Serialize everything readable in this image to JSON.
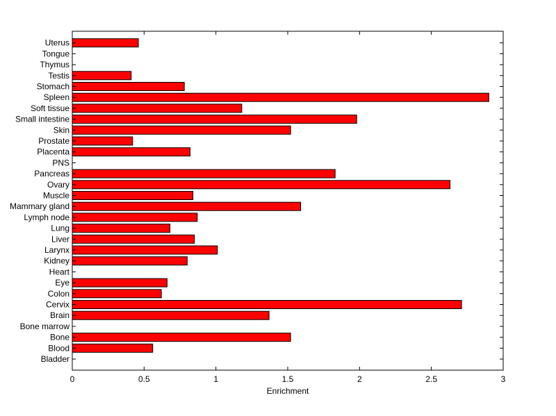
{
  "chart_data": {
    "type": "bar",
    "orientation": "horizontal",
    "categories": [
      "Bladder",
      "Blood",
      "Bone",
      "Bone marrow",
      "Brain",
      "Cervix",
      "Colon",
      "Eye",
      "Heart",
      "Kidney",
      "Larynx",
      "Liver",
      "Lung",
      "Lymph node",
      "Mammary gland",
      "Muscle",
      "Ovary",
      "Pancreas",
      "PNS",
      "Placenta",
      "Prostate",
      "Skin",
      "Small intestine",
      "Soft tissue",
      "Spleen",
      "Stomach",
      "Testis",
      "Thymus",
      "Tongue",
      "Uterus"
    ],
    "values": [
      0,
      0.56,
      1.52,
      0,
      1.37,
      2.71,
      0.62,
      0.66,
      0,
      0.8,
      1.01,
      0.85,
      0.68,
      0.87,
      1.59,
      0.84,
      2.63,
      1.83,
      0,
      0.82,
      0.42,
      1.52,
      1.98,
      1.18,
      2.9,
      0.78,
      0.41,
      0,
      0,
      0.46
    ],
    "title": "",
    "xlabel": "Enrichment",
    "ylabel": "",
    "xlim": [
      0,
      3
    ],
    "xticks": [
      0,
      0.5,
      1,
      1.5,
      2,
      2.5,
      3
    ],
    "xtick_labels": [
      "0",
      "0.5",
      "1",
      "1.5",
      "2",
      "2.5",
      "3"
    ],
    "grid": false,
    "legend": "none",
    "colors": {
      "bar": "#ff0000",
      "bar_edge": "#000000",
      "axis": "#000000",
      "background": "#ffffff"
    }
  }
}
